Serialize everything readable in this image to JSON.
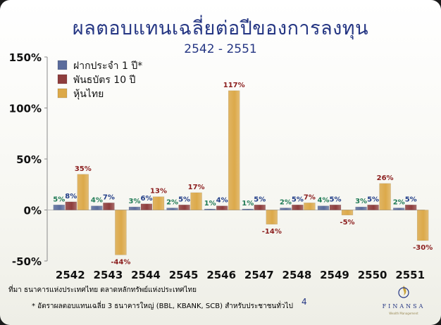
{
  "slide": {
    "source": "ที่มา ธนาคารแห่งประเทศไทย ตลาดหลักทรัพย์แห่งประเทศไทย",
    "footnote": "* อัตราผลตอบแทนเฉลี่ย 3 ธนาคารใหญ่ (BBL, KBANK, SCB) สำหรับประชาชนทั่วไป",
    "page_number": "4",
    "logo_text": "FINANSA",
    "logo_tagline": "Wealth Management",
    "colors": {
      "title": "#253683",
      "background": "#f7f7f2"
    }
  },
  "chart_data": {
    "type": "bar",
    "title": "ผลตอบแทนเฉลี่ยต่อปีของการลงทุน",
    "subtitle": "2542 - 2551",
    "categories": [
      "2542",
      "2543",
      "2544",
      "2545",
      "2546",
      "2547",
      "2548",
      "2549",
      "2550",
      "2551"
    ],
    "series": [
      {
        "name": "ฝากประจำ 1 ปี*",
        "color": "#5b6c9c",
        "label_color": "#1f7a55",
        "values": [
          5,
          4,
          3,
          2,
          1,
          1,
          2,
          4,
          3,
          2
        ]
      },
      {
        "name": "พันธบัตร 10 ปี",
        "color": "#8e3d3d",
        "label_color": "#213d87",
        "values": [
          8,
          7,
          6,
          5,
          4,
          5,
          5,
          5,
          5,
          5
        ]
      },
      {
        "name": "หุ้นไทย",
        "color": "#dca94a",
        "label_color": "#8a1c1c",
        "values": [
          35,
          -44,
          13,
          17,
          117,
          -14,
          7,
          -5,
          26,
          -30
        ]
      }
    ],
    "yticks": [
      -50,
      0,
      50,
      100,
      150
    ],
    "ytick_labels": [
      "-50%",
      "0%",
      "50%",
      "100%",
      "150%"
    ],
    "ylim": [
      -50,
      150
    ],
    "value_suffix": "%",
    "grid": false,
    "legend": "top-left"
  }
}
